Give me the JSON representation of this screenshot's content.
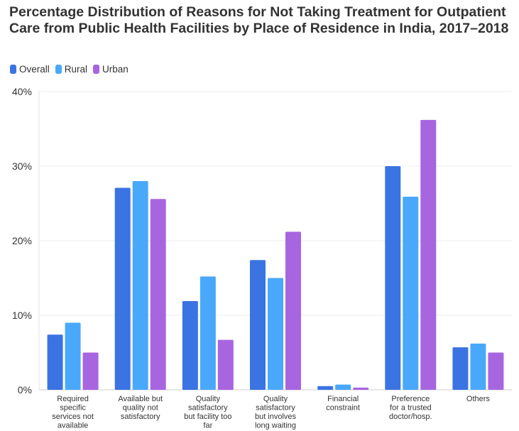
{
  "chart_data": {
    "type": "bar",
    "title": "Percentage Distribution of Reasons for Not Taking Treatment for Outpatient Care from Public Health Facilities by Place of Residence in India, 2017–2018",
    "xlabel": "",
    "ylabel": "",
    "ylim": [
      0,
      40
    ],
    "yticks": [
      0,
      10,
      20,
      30,
      40
    ],
    "ytick_labels": [
      "0%",
      "10%",
      "20%",
      "30%",
      "40%"
    ],
    "categories": [
      [
        "Required",
        "specific",
        "services not",
        "available"
      ],
      [
        "Available but",
        "quality not",
        "satisfactory"
      ],
      [
        "Quality",
        "satisfactory",
        "but facility too",
        "far"
      ],
      [
        "Quality",
        "satisfactory",
        "but involves",
        "long waiting"
      ],
      [
        "Financial",
        "constraint"
      ],
      [
        "Preference",
        "for a trusted",
        "doctor/hosp."
      ],
      [
        "Others"
      ]
    ],
    "series": [
      {
        "name": "Overall",
        "color": "#3a74e2",
        "values": [
          7.4,
          27.1,
          11.9,
          17.4,
          0.5,
          30.0,
          5.7
        ]
      },
      {
        "name": "Rural",
        "color": "#4aa8fb",
        "values": [
          9.0,
          28.0,
          15.2,
          15.0,
          0.7,
          25.9,
          6.2
        ]
      },
      {
        "name": "Urban",
        "color": "#a865e0",
        "values": [
          5.0,
          25.6,
          6.7,
          21.2,
          0.3,
          36.2,
          5.0
        ]
      }
    ],
    "grid": true,
    "legend_position": "top-left"
  }
}
